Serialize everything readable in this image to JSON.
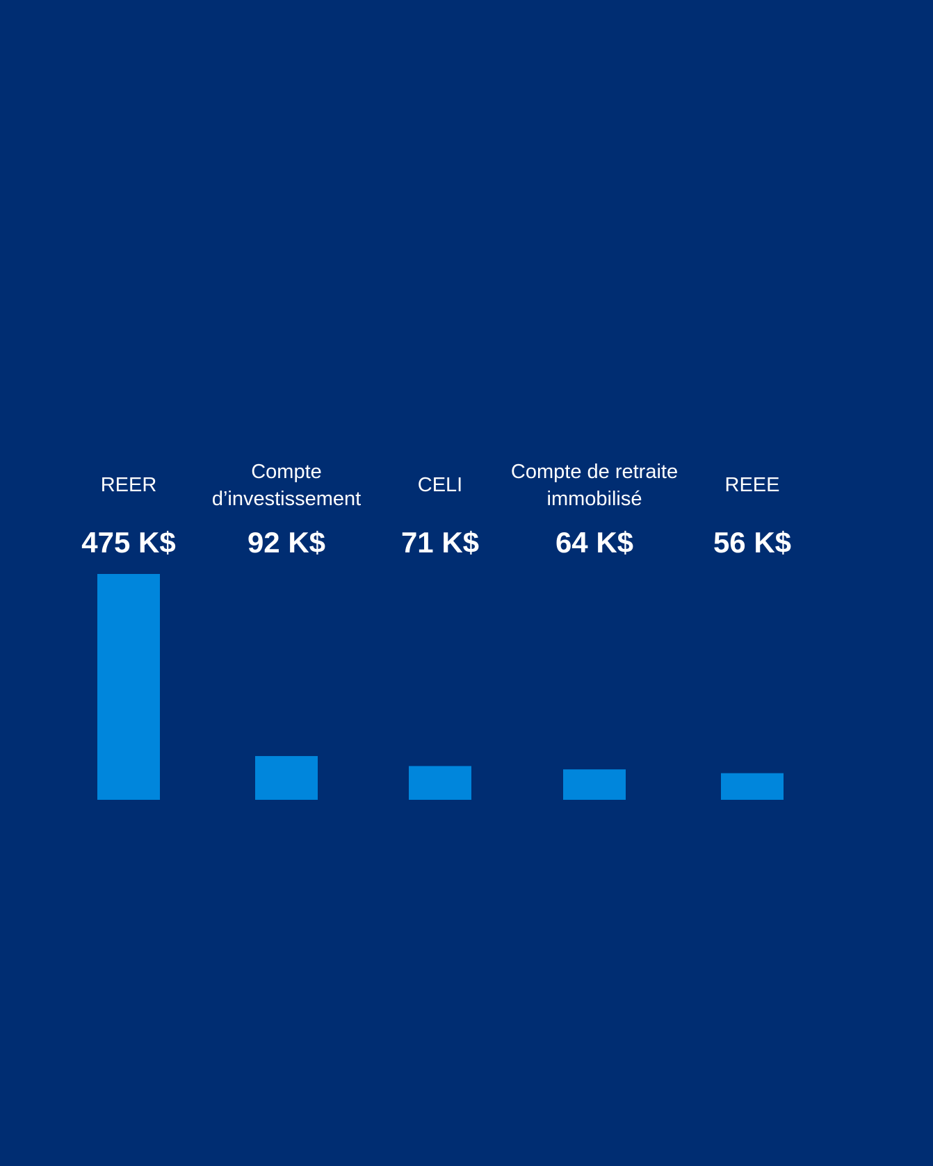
{
  "colors": {
    "background": "#002d72",
    "bar": "#0086dc",
    "text": "#ffffff"
  },
  "chart_data": {
    "type": "bar",
    "title": "",
    "xlabel": "",
    "ylabel": "",
    "unit": "K$",
    "ylim": [
      0,
      475
    ],
    "grid": false,
    "legend": "none",
    "categories": [
      [
        "REER"
      ],
      [
        "Compte",
        "d’investissement"
      ],
      [
        "CELI"
      ],
      [
        "Compte de retraite",
        "immobilisé"
      ],
      [
        "REEE"
      ]
    ],
    "values": [
      475,
      92,
      71,
      64,
      56
    ],
    "value_labels": [
      "475 K$",
      "92 K$",
      "71 K$",
      "64 K$",
      "56 K$"
    ]
  }
}
